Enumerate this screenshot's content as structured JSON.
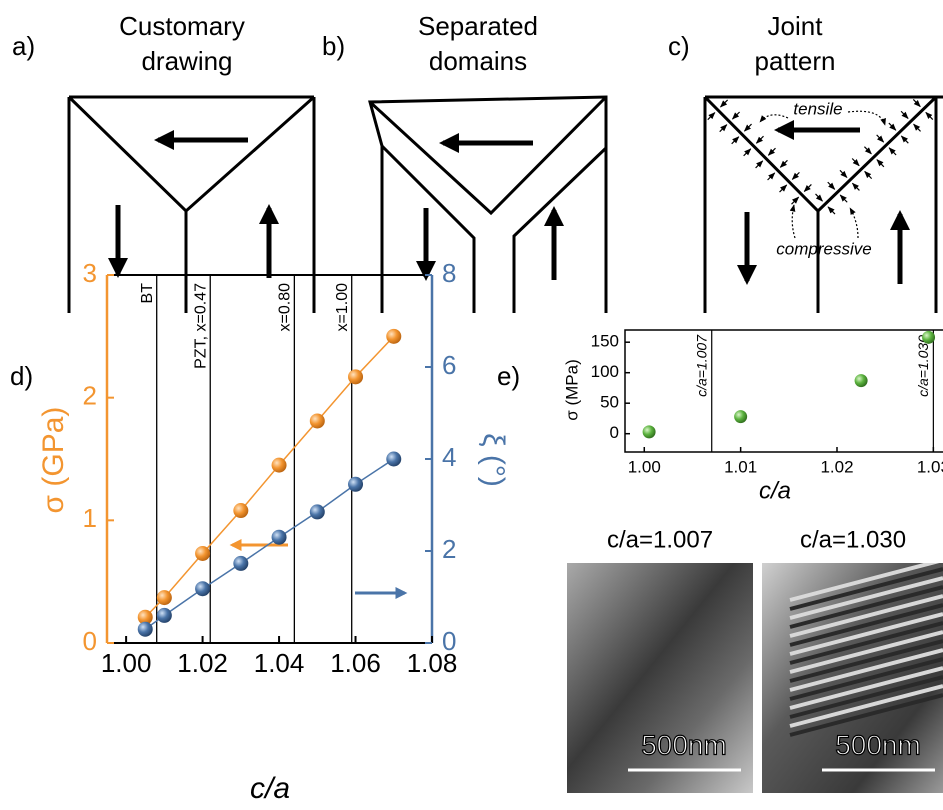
{
  "panels": [
    {
      "label": "a)",
      "title": [
        "Customary",
        "drawing"
      ]
    },
    {
      "label": "b)",
      "title": [
        "Separated",
        "domains"
      ]
    },
    {
      "label": "c)",
      "title": [
        "Joint",
        "pattern"
      ]
    }
  ],
  "annotations": {
    "tensile": "tensile",
    "compressive": "compressive"
  },
  "chart_data": [
    {
      "type": "line",
      "label": "d)",
      "x_label": "c/a",
      "y_label": "σ (GPa)",
      "y2_label": "ξ (°)",
      "x": [
        1.005,
        1.01,
        1.02,
        1.03,
        1.04,
        1.05,
        1.06,
        1.07
      ],
      "series": [
        {
          "color": "#f39530",
          "values": [
            0.21,
            0.37,
            0.73,
            1.08,
            1.45,
            1.81,
            2.17,
            2.5
          ]
        },
        {
          "color": "#4a74a8",
          "axis": "y2",
          "values": [
            0.3,
            0.6,
            1.18,
            1.73,
            2.3,
            2.85,
            3.45,
            4.0
          ]
        }
      ],
      "xlim": [
        0.995,
        1.08
      ],
      "xticks": [
        {
          "value": 1.0,
          "label": "1.00"
        },
        {
          "value": 1.02,
          "label": "1.02"
        },
        {
          "value": 1.04,
          "label": "1.04"
        },
        {
          "value": 1.06,
          "label": "1.06"
        },
        {
          "value": 1.08,
          "label": "1.08"
        }
      ],
      "ylim": [
        0,
        3
      ],
      "yticks": [
        0,
        1,
        2,
        3
      ],
      "y2lim": [
        0,
        8
      ],
      "y2ticks": [
        0,
        2,
        4,
        6,
        8
      ],
      "vlines": [
        {
          "value": 1.008,
          "label": "BT"
        },
        {
          "value": 1.022,
          "label": "PZT, x=0.47"
        },
        {
          "value": 1.044,
          "label": "x=0.80"
        },
        {
          "value": 1.059,
          "label": "x=1.00"
        }
      ]
    },
    {
      "type": "scatter",
      "label": "e)",
      "x_label": "c/a",
      "y_label": "σ (MPa)",
      "x": [
        1.0005,
        1.01,
        1.0225,
        1.0295
      ],
      "values": [
        3,
        28,
        87,
        158
      ],
      "color": "#5cb33f",
      "xlim": [
        0.998,
        1.031
      ],
      "xticks": [
        {
          "value": 1.0,
          "label": "1.00"
        },
        {
          "value": 1.01,
          "label": "1.01"
        },
        {
          "value": 1.02,
          "label": "1.02"
        },
        {
          "value": 1.03,
          "label": "1.03"
        }
      ],
      "ylim": [
        -30,
        170
      ],
      "yticks": [
        0,
        50,
        100,
        150
      ],
      "vlines": [
        {
          "value": 1.007,
          "label": "c/a=1.007"
        },
        {
          "value": 1.03,
          "label": "c/a=1.030"
        }
      ]
    }
  ],
  "images": [
    {
      "title": "c/a=1.007",
      "scale_bar": "500nm"
    },
    {
      "title": "c/a=1.030",
      "scale_bar": "500nm"
    }
  ]
}
